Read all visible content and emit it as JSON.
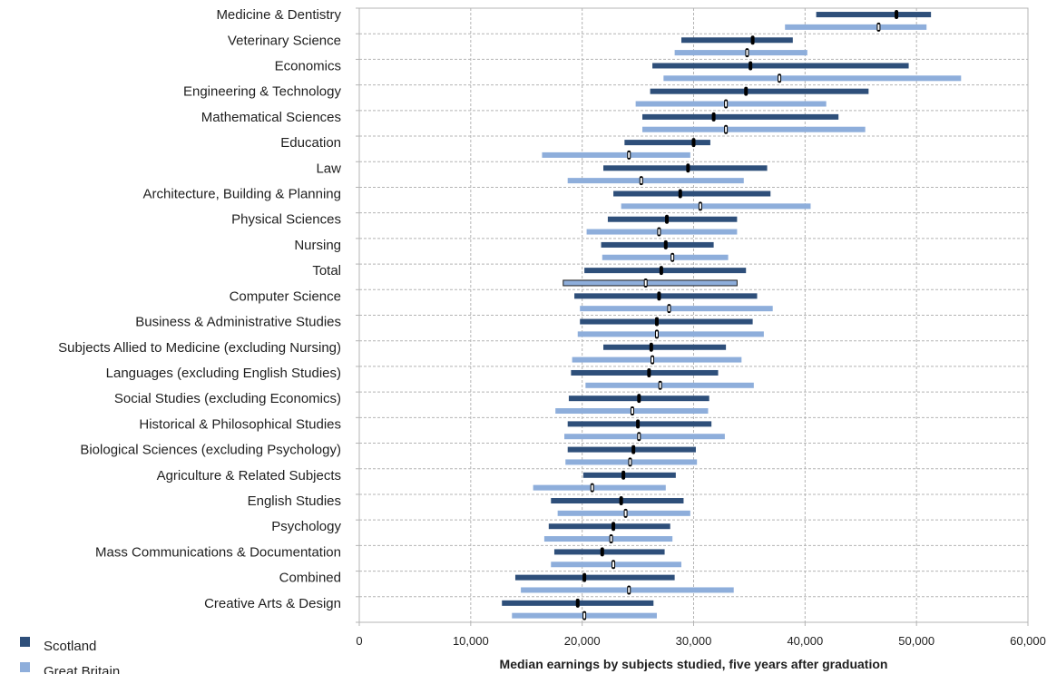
{
  "chart_data": {
    "type": "range-bar",
    "title": "",
    "xlabel": "Median earnings by subjects studied, five years after graduation",
    "ylabel": "",
    "xlim": [
      0,
      60000
    ],
    "xticks": [
      0,
      10000,
      20000,
      30000,
      40000,
      50000,
      60000
    ],
    "xtick_labels": [
      "0",
      "10,000",
      "20,000",
      "30,000",
      "40,000",
      "50,000",
      "60,000"
    ],
    "grid": true,
    "legend_position": "bottom-left",
    "colors": {
      "Scotland": "#2e4f7a",
      "Great Britain": "#8eaedb",
      "median_marker": "#000000"
    },
    "series": [
      {
        "name": "Scotland",
        "fields": [
          "low",
          "median",
          "high"
        ]
      },
      {
        "name": "Great Britain",
        "fields": [
          "low",
          "median",
          "high"
        ]
      }
    ],
    "categories": [
      {
        "name": "Medicine & Dentistry",
        "scotland": [
          41000,
          48200,
          51300
        ],
        "gb": [
          38200,
          46600,
          50900
        ]
      },
      {
        "name": "Veterinary Science",
        "scotland": [
          28900,
          35300,
          38900
        ],
        "gb": [
          28300,
          34800,
          40200
        ]
      },
      {
        "name": "Economics",
        "scotland": [
          26300,
          35100,
          49300
        ],
        "gb": [
          27300,
          37700,
          54000
        ]
      },
      {
        "name": "Engineering & Technology",
        "scotland": [
          26100,
          34700,
          45700
        ],
        "gb": [
          24800,
          32900,
          41900
        ]
      },
      {
        "name": "Mathematical Sciences",
        "scotland": [
          25400,
          31800,
          43000
        ],
        "gb": [
          25400,
          32900,
          45400
        ]
      },
      {
        "name": "Education",
        "scotland": [
          23800,
          30000,
          31500
        ],
        "gb": [
          16400,
          24200,
          29700
        ]
      },
      {
        "name": "Law",
        "scotland": [
          21900,
          29500,
          36600
        ],
        "gb": [
          18700,
          25300,
          34500
        ]
      },
      {
        "name": "Architecture, Building & Planning",
        "scotland": [
          22800,
          28800,
          36900
        ],
        "gb": [
          23500,
          30600,
          40500
        ]
      },
      {
        "name": "Physical Sciences",
        "scotland": [
          22300,
          27600,
          33900
        ],
        "gb": [
          20400,
          26900,
          33900
        ]
      },
      {
        "name": "Nursing",
        "scotland": [
          21700,
          27500,
          31800
        ],
        "gb": [
          21800,
          28100,
          33100
        ]
      },
      {
        "name": "Total",
        "scotland": [
          20200,
          27100,
          34700
        ],
        "gb": [
          18300,
          25700,
          33900
        ]
      },
      {
        "name": "Computer Science",
        "scotland": [
          19300,
          26900,
          35700
        ],
        "gb": [
          19800,
          27800,
          37100
        ]
      },
      {
        "name": "Business & Administrative Studies",
        "scotland": [
          19800,
          26700,
          35300
        ],
        "gb": [
          19600,
          26700,
          36300
        ]
      },
      {
        "name": "Subjects Allied to Medicine (excluding Nursing)",
        "scotland": [
          21900,
          26200,
          32900
        ],
        "gb": [
          19100,
          26300,
          34300
        ]
      },
      {
        "name": "Languages (excluding English Studies)",
        "scotland": [
          19000,
          26000,
          32200
        ],
        "gb": [
          20300,
          27000,
          35400
        ]
      },
      {
        "name": "Social Studies (excluding Economics)",
        "scotland": [
          18800,
          25100,
          31400
        ],
        "gb": [
          17600,
          24500,
          31300
        ]
      },
      {
        "name": "Historical & Philosophical Studies",
        "scotland": [
          18700,
          25000,
          31600
        ],
        "gb": [
          18400,
          25100,
          32800
        ]
      },
      {
        "name": "Biological Sciences (excluding Psychology)",
        "scotland": [
          18700,
          24600,
          30200
        ],
        "gb": [
          18500,
          24300,
          30300
        ]
      },
      {
        "name": "Agriculture & Related Subjects",
        "scotland": [
          20100,
          23700,
          28400
        ],
        "gb": [
          15600,
          20900,
          27500
        ]
      },
      {
        "name": "English Studies",
        "scotland": [
          17200,
          23500,
          29100
        ],
        "gb": [
          17800,
          23900,
          29700
        ]
      },
      {
        "name": "Psychology",
        "scotland": [
          17000,
          22800,
          27900
        ],
        "gb": [
          16600,
          22600,
          28100
        ]
      },
      {
        "name": "Mass Communications & Documentation",
        "scotland": [
          17500,
          21800,
          27400
        ],
        "gb": [
          17200,
          22800,
          28900
        ]
      },
      {
        "name": "Combined",
        "scotland": [
          14000,
          20200,
          28300
        ],
        "gb": [
          14500,
          24200,
          33600
        ]
      },
      {
        "name": "Creative Arts & Design",
        "scotland": [
          12800,
          19600,
          26400
        ],
        "gb": [
          13700,
          20200,
          26700
        ]
      }
    ],
    "highlighted_category": "Total"
  },
  "legend": {
    "items": [
      {
        "label": "Scotland",
        "color": "#2e4f7a"
      },
      {
        "label": "Great Britain",
        "color": "#8eaedb"
      }
    ]
  }
}
